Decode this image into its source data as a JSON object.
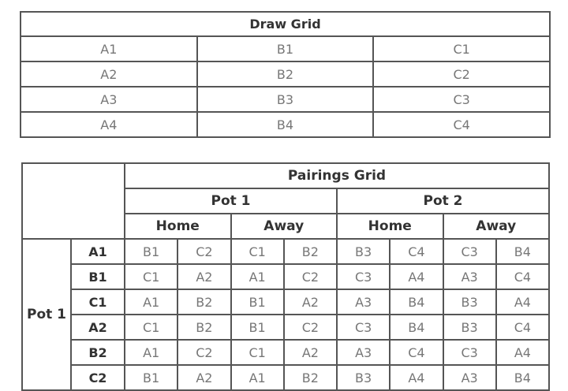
{
  "draw_grid": {
    "title": "Draw Grid",
    "rows": [
      [
        "A1",
        "B1",
        "C1"
      ],
      [
        "A2",
        "B2",
        "C2"
      ],
      [
        "A3",
        "B3",
        "C3"
      ],
      [
        "A4",
        "B4",
        "C4"
      ]
    ]
  },
  "pairings_grid": {
    "title": "Pairings Grid",
    "pots": [
      "Pot 1",
      "Pot 2"
    ],
    "sub_headers": [
      "Home",
      "Away",
      "Home",
      "Away"
    ],
    "group_label": "Pot 1",
    "rows": [
      {
        "label": "A1",
        "cells": [
          "B1",
          "C2",
          "C1",
          "B2",
          "B3",
          "C4",
          "C3",
          "B4"
        ]
      },
      {
        "label": "B1",
        "cells": [
          "C1",
          "A2",
          "A1",
          "C2",
          "C3",
          "A4",
          "A3",
          "C4"
        ]
      },
      {
        "label": "C1",
        "cells": [
          "A1",
          "B2",
          "B1",
          "A2",
          "A3",
          "B4",
          "B3",
          "A4"
        ]
      },
      {
        "label": "A2",
        "cells": [
          "C1",
          "B2",
          "B1",
          "C2",
          "C3",
          "B4",
          "B3",
          "C4"
        ]
      },
      {
        "label": "B2",
        "cells": [
          "A1",
          "C2",
          "C1",
          "A2",
          "A3",
          "C4",
          "C3",
          "A4"
        ]
      },
      {
        "label": "C2",
        "cells": [
          "B1",
          "A2",
          "A1",
          "B2",
          "B3",
          "A4",
          "A3",
          "B4"
        ]
      }
    ]
  }
}
